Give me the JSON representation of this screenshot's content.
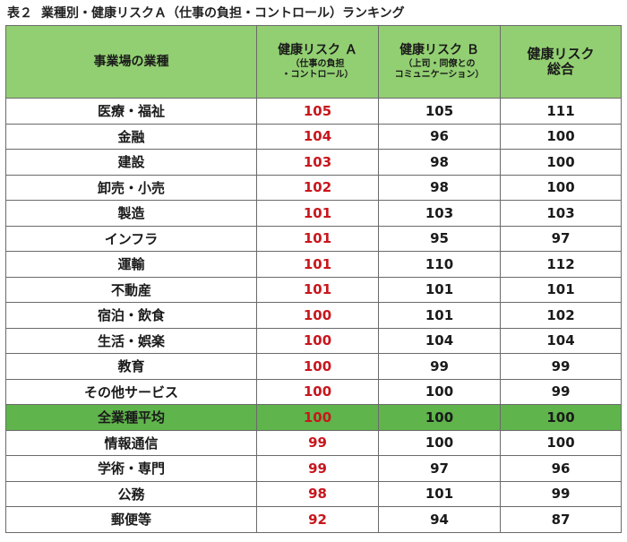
{
  "caption": {
    "number": "表２",
    "title": "業種別・健康リスクＡ（仕事の負担・コントロール）ランキング"
  },
  "headers": {
    "industry": "事業場の業種",
    "risk_a_main": "健康リスク Ａ",
    "risk_a_sub1": "（仕事の負担",
    "risk_a_sub2": "・コントロール）",
    "risk_b_main": "健康リスク Ｂ",
    "risk_b_sub1": "（上司・同僚との",
    "risk_b_sub2": "コミュニケーション）",
    "total_main1": "健康リスク",
    "total_main2": "総合"
  },
  "colors": {
    "header_bg": "#92cf72",
    "average_row_bg": "#5fb44c",
    "risk_a_text": "#c8161d",
    "border": "#6a6a6a"
  },
  "rows": [
    {
      "industry": "医療・福祉",
      "risk_a": "105",
      "risk_b": "105",
      "total": "111"
    },
    {
      "industry": "金融",
      "risk_a": "104",
      "risk_b": "96",
      "total": "100"
    },
    {
      "industry": "建設",
      "risk_a": "103",
      "risk_b": "98",
      "total": "100"
    },
    {
      "industry": "卸売・小売",
      "risk_a": "102",
      "risk_b": "98",
      "total": "100"
    },
    {
      "industry": "製造",
      "risk_a": "101",
      "risk_b": "103",
      "total": "103"
    },
    {
      "industry": "インフラ",
      "risk_a": "101",
      "risk_b": "95",
      "total": "97"
    },
    {
      "industry": "運輸",
      "risk_a": "101",
      "risk_b": "110",
      "total": "112"
    },
    {
      "industry": "不動産",
      "risk_a": "101",
      "risk_b": "101",
      "total": "101"
    },
    {
      "industry": "宿泊・飲食",
      "risk_a": "100",
      "risk_b": "101",
      "total": "102"
    },
    {
      "industry": "生活・娯楽",
      "risk_a": "100",
      "risk_b": "104",
      "total": "104"
    },
    {
      "industry": "教育",
      "risk_a": "100",
      "risk_b": "99",
      "total": "99"
    },
    {
      "industry": "その他サービス",
      "risk_a": "100",
      "risk_b": "100",
      "total": "99"
    },
    {
      "industry": "全業種平均",
      "risk_a": "100",
      "risk_b": "100",
      "total": "100"
    },
    {
      "industry": "情報通信",
      "risk_a": "99",
      "risk_b": "100",
      "total": "100"
    },
    {
      "industry": "学術・専門",
      "risk_a": "99",
      "risk_b": "97",
      "total": "96"
    },
    {
      "industry": "公務",
      "risk_a": "98",
      "risk_b": "101",
      "total": "99"
    },
    {
      "industry": "郵便等",
      "risk_a": "92",
      "risk_b": "94",
      "total": "87"
    }
  ]
}
